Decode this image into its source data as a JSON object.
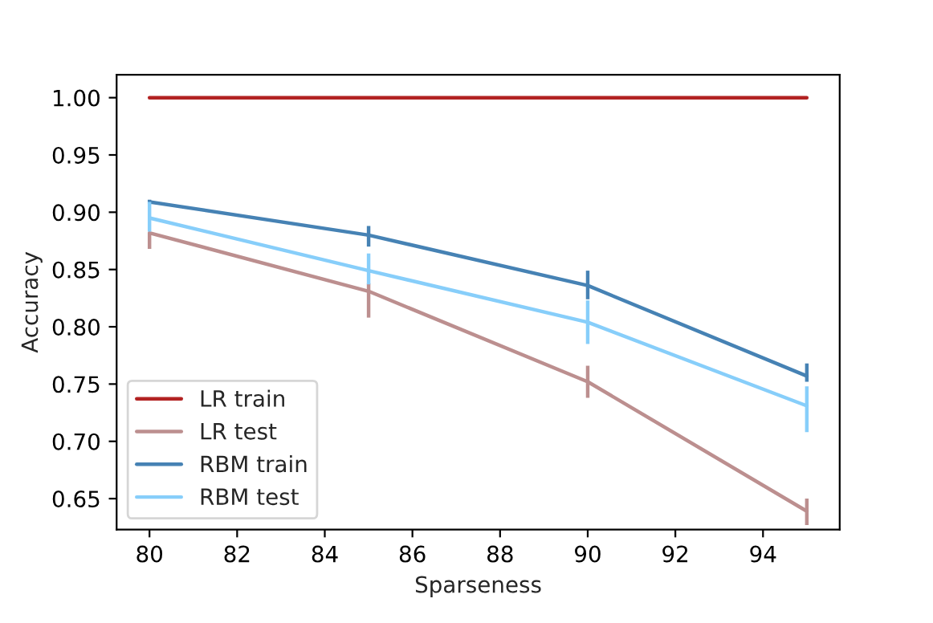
{
  "chart_data": {
    "type": "line",
    "xlabel": "Sparseness",
    "ylabel": "Accuracy",
    "x": [
      80,
      85,
      90,
      95
    ],
    "series": [
      {
        "name": "LR train",
        "color": "#b22222",
        "values": [
          1.0,
          1.0,
          1.0,
          1.0
        ]
      },
      {
        "name": "LR test",
        "color": "#bc8f8f",
        "values": [
          0.882,
          0.831,
          0.752,
          0.639
        ],
        "errors": [
          [
            0.868,
            0.882
          ],
          [
            0.808,
            0.838
          ],
          [
            0.738,
            0.766
          ],
          [
            0.627,
            0.65
          ]
        ]
      },
      {
        "name": "RBM train",
        "color": "#4682b4",
        "values": [
          0.909,
          0.88,
          0.836,
          0.757
        ],
        "errors": [
          [
            0.907,
            0.911
          ],
          [
            0.87,
            0.888
          ],
          [
            0.824,
            0.849
          ],
          [
            0.752,
            0.768
          ]
        ]
      },
      {
        "name": "RBM test",
        "color": "#87cefa",
        "values": [
          0.895,
          0.849,
          0.804,
          0.731
        ],
        "errors": [
          [
            0.883,
            0.909
          ],
          [
            0.837,
            0.864
          ],
          [
            0.785,
            0.823
          ],
          [
            0.708,
            0.748
          ]
        ]
      }
    ],
    "xlim": [
      79.25,
      95.75
    ],
    "xticks": [
      80,
      82,
      84,
      86,
      88,
      90,
      92,
      94
    ],
    "ylim": [
      0.623,
      1.02
    ],
    "yticks": [
      {
        "value": 0.65,
        "label": "0.65"
      },
      {
        "value": 0.7,
        "label": "0.70"
      },
      {
        "value": 0.75,
        "label": "0.75"
      },
      {
        "value": 0.8,
        "label": "0.80"
      },
      {
        "value": 0.85,
        "label": "0.85"
      },
      {
        "value": 0.9,
        "label": "0.90"
      },
      {
        "value": 0.95,
        "label": "0.95"
      },
      {
        "value": 1.0,
        "label": "1.00"
      }
    ],
    "grid": false,
    "legend": "bottom left",
    "line_style": "solid"
  }
}
